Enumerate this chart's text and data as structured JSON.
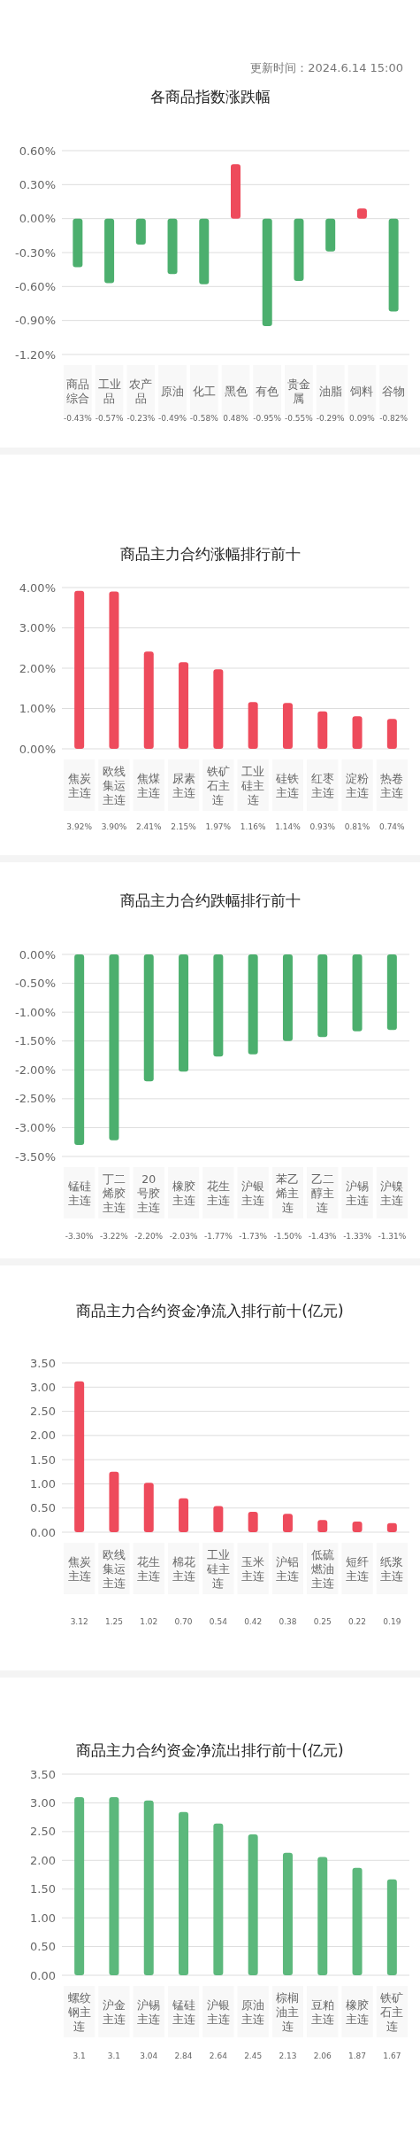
{
  "chart_data": [
    {
      "type": "bar",
      "title": "各商品指数涨跌幅",
      "subtitle": "更新时间：2024.6.14 15:00",
      "categories": [
        "商品综合",
        "工业品",
        "农产品",
        "原油",
        "化工",
        "黑色",
        "有色",
        "贵金属",
        "油脂",
        "饲料",
        "谷物"
      ],
      "values": [
        -0.43,
        -0.57,
        -0.23,
        -0.49,
        -0.58,
        0.48,
        -0.95,
        -0.55,
        -0.29,
        0.09,
        -0.82
      ],
      "colors": [
        "#4caf6e",
        "#4caf6e",
        "#4caf6e",
        "#4caf6e",
        "#4caf6e",
        "#ee4b5c",
        "#4caf6e",
        "#4caf6e",
        "#4caf6e",
        "#ee4b5c",
        "#4caf6e"
      ],
      "value_labels": [
        "-0.43%",
        "-0.57%",
        "-0.23%",
        "-0.49%",
        "-0.58%",
        "0.48%",
        "-0.95%",
        "-0.55%",
        "-0.29%",
        "0.09%",
        "-0.82%"
      ],
      "ylim": [
        -1.2,
        0.6
      ],
      "yticks": [
        {
          "value": 0.6,
          "label": "0.60%"
        },
        {
          "value": 0.3,
          "label": "0.30%"
        },
        {
          "value": 0,
          "label": "0.00%"
        },
        {
          "value": -0.3,
          "label": "-0.30%"
        },
        {
          "value": -0.6,
          "label": "-0.60%"
        },
        {
          "value": -0.9,
          "label": "-0.90%"
        },
        {
          "value": -1.2,
          "label": "-1.20%"
        }
      ],
      "grid": "y"
    },
    {
      "type": "bar",
      "title": "商品主力合约涨幅排行前十",
      "categories": [
        "焦炭主连",
        "欧线集运主连",
        "焦煤主连",
        "尿素主连",
        "铁矿石主连",
        "工业硅主连",
        "硅铁主连",
        "红枣主连",
        "淀粉主连",
        "热卷主连"
      ],
      "values": [
        3.92,
        3.9,
        2.41,
        2.15,
        1.97,
        1.16,
        1.14,
        0.93,
        0.81,
        0.74
      ],
      "color": "#ee4b5c",
      "value_labels": [
        "3.92%",
        "3.90%",
        "2.41%",
        "2.15%",
        "1.97%",
        "1.16%",
        "1.14%",
        "0.93%",
        "0.81%",
        "0.74%"
      ],
      "ylim": [
        0,
        4
      ],
      "yticks": [
        {
          "value": 4,
          "label": "4.00%"
        },
        {
          "value": 3,
          "label": "3.00%"
        },
        {
          "value": 2,
          "label": "2.00%"
        },
        {
          "value": 1,
          "label": "1.00%"
        },
        {
          "value": 0,
          "label": "0.00%"
        }
      ],
      "grid": "y"
    },
    {
      "type": "bar",
      "title": "商品主力合约跌幅排行前十",
      "categories": [
        "锰硅主连",
        "丁二烯胶主连",
        "20号胶主连",
        "橡胶主连",
        "花生主连",
        "沪银主连",
        "苯乙烯主连",
        "乙二醇主连",
        "沪锡主连",
        "沪镍主连"
      ],
      "values": [
        -3.3,
        -3.22,
        -2.2,
        -2.03,
        -1.77,
        -1.73,
        -1.5,
        -1.43,
        -1.33,
        -1.31
      ],
      "color": "#4caf6e",
      "value_labels": [
        "-3.30%",
        "-3.22%",
        "-2.20%",
        "-2.03%",
        "-1.77%",
        "-1.73%",
        "-1.50%",
        "-1.43%",
        "-1.33%",
        "-1.31%"
      ],
      "ylim": [
        -3.5,
        0
      ],
      "yticks": [
        {
          "value": 0,
          "label": "0.00%"
        },
        {
          "value": -0.5,
          "label": "-0.50%"
        },
        {
          "value": -1,
          "label": "-1.00%"
        },
        {
          "value": -1.5,
          "label": "-1.50%"
        },
        {
          "value": -2,
          "label": "-2.00%"
        },
        {
          "value": -2.5,
          "label": "-2.50%"
        },
        {
          "value": -3,
          "label": "-3.00%"
        },
        {
          "value": -3.5,
          "label": "-3.50%"
        }
      ],
      "grid": "y"
    },
    {
      "type": "bar",
      "title": "商品主力合约资金净流入排行前十(亿元)",
      "categories": [
        "焦炭主连",
        "欧线集运主连",
        "花生主连",
        "棉花主连",
        "工业硅主连",
        "玉米主连",
        "沪铝主连",
        "低硫燃油主连",
        "短纤主连",
        "纸浆主连"
      ],
      "values": [
        3.12,
        1.25,
        1.02,
        0.7,
        0.54,
        0.42,
        0.38,
        0.25,
        0.22,
        0.19
      ],
      "color": "#ee4b5c",
      "value_labels": [
        "3.12",
        "1.25",
        "1.02",
        "0.70",
        "0.54",
        "0.42",
        "0.38",
        "0.25",
        "0.22",
        "0.19"
      ],
      "ylim": [
        0,
        3.5
      ],
      "yticks": [
        {
          "value": 3.5,
          "label": "3.50"
        },
        {
          "value": 3,
          "label": "3.00"
        },
        {
          "value": 2.5,
          "label": "2.50"
        },
        {
          "value": 2,
          "label": "2.00"
        },
        {
          "value": 1.5,
          "label": "1.50"
        },
        {
          "value": 1,
          "label": "1.00"
        },
        {
          "value": 0.5,
          "label": "0.50"
        },
        {
          "value": 0,
          "label": "0.00"
        }
      ],
      "grid": "y"
    },
    {
      "type": "bar",
      "title": "商品主力合约资金净流出排行前十(亿元)",
      "categories": [
        "螺纹钢主连",
        "沪金主连",
        "沪锡主连",
        "锰硅主连",
        "沪银主连",
        "原油主连",
        "棕榈油主连",
        "豆粕主连",
        "橡胶主连",
        "铁矿石主连"
      ],
      "values": [
        3.1,
        3.1,
        3.04,
        2.84,
        2.64,
        2.45,
        2.13,
        2.06,
        1.87,
        1.67
      ],
      "color": "#5cb87c",
      "value_labels": [
        "3.1",
        "3.1",
        "3.04",
        "2.84",
        "2.64",
        "2.45",
        "2.13",
        "2.06",
        "1.87",
        "1.67"
      ],
      "ylim": [
        0,
        3.5
      ],
      "yticks": [
        {
          "value": 3.5,
          "label": "3.50"
        },
        {
          "value": 3,
          "label": "3.00"
        },
        {
          "value": 2.5,
          "label": "2.50"
        },
        {
          "value": 2,
          "label": "2.00"
        },
        {
          "value": 1.5,
          "label": "1.50"
        },
        {
          "value": 1,
          "label": "1.00"
        },
        {
          "value": 0.5,
          "label": "0.50"
        },
        {
          "value": 0,
          "label": "0.00"
        }
      ],
      "grid": "y"
    }
  ]
}
